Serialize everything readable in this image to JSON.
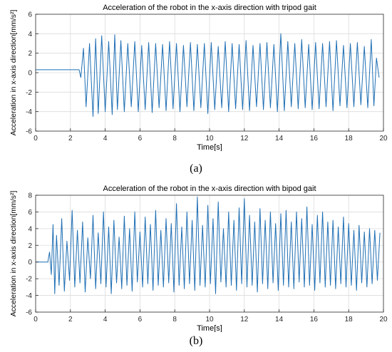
{
  "captions": [
    "(a)",
    "(b)"
  ],
  "colors": {
    "line": "#1f6fb4",
    "grid": "#dcdcdc",
    "axis": "#262626"
  },
  "chart_data": [
    {
      "type": "line",
      "title": "Acceleration of the robot in the x-axis direction with tripod gait",
      "xlabel": "Time[s]",
      "ylabel": "Acceleration in x-axis direction[mm/s²]",
      "xlim": [
        0,
        20
      ],
      "ylim": [
        -6,
        6
      ],
      "xticks": [
        0,
        2,
        4,
        6,
        8,
        10,
        12,
        14,
        16,
        18,
        20
      ],
      "yticks": [
        -6,
        -4,
        -2,
        0,
        2,
        4,
        6
      ],
      "grid": true,
      "series": [
        {
          "x": [
            0,
            2.5,
            2.6,
            2.75,
            2.9,
            3.1,
            3.3,
            3.45,
            3.6,
            3.8,
            4.0,
            4.2,
            4.4,
            4.55,
            4.7,
            4.9,
            5.1,
            5.3,
            5.5,
            5.7,
            5.9,
            6.1,
            6.3,
            6.5,
            6.7,
            6.9,
            7.1,
            7.3,
            7.5,
            7.7,
            7.9,
            8.1,
            8.3,
            8.5,
            8.7,
            8.9,
            9.1,
            9.3,
            9.5,
            9.7,
            9.9,
            10.1,
            10.3,
            10.5,
            10.7,
            10.9,
            11.1,
            11.3,
            11.5,
            11.7,
            11.9,
            12.1,
            12.3,
            12.5,
            12.7,
            12.9,
            13.1,
            13.3,
            13.5,
            13.7,
            13.9,
            14.1,
            14.3,
            14.5,
            14.7,
            14.9,
            15.1,
            15.3,
            15.5,
            15.7,
            15.9,
            16.1,
            16.3,
            16.5,
            16.7,
            16.9,
            17.1,
            17.3,
            17.5,
            17.7,
            17.9,
            18.1,
            18.3,
            18.5,
            18.7,
            18.9,
            19.1,
            19.3,
            19.45,
            19.6,
            19.75
          ],
          "y": [
            0.3,
            0.3,
            -0.5,
            2.5,
            -3.5,
            3.0,
            -4.5,
            3.5,
            -4.2,
            3.8,
            -4.0,
            3.2,
            -4.3,
            3.9,
            -3.8,
            3.3,
            -4.0,
            3.0,
            -3.5,
            3.2,
            -4.0,
            2.8,
            -3.8,
            3.1,
            -4.1,
            3.0,
            -3.6,
            2.9,
            -3.9,
            3.2,
            -3.7,
            3.0,
            -4.0,
            2.8,
            -3.5,
            3.1,
            -3.9,
            2.9,
            -3.6,
            3.0,
            -4.2,
            3.1,
            -3.8,
            2.7,
            -3.6,
            3.2,
            -4.0,
            3.0,
            -3.7,
            2.9,
            -3.8,
            3.3,
            -3.9,
            2.8,
            -3.5,
            3.0,
            -3.8,
            3.1,
            -3.6,
            2.9,
            -4.0,
            4.0,
            -3.9,
            3.2,
            -3.5,
            3.0,
            -3.7,
            3.4,
            -3.6,
            2.9,
            -3.8,
            3.1,
            -3.7,
            3.0,
            -3.5,
            3.2,
            -3.9,
            3.3,
            -3.4,
            2.8,
            -3.6,
            3.0,
            -3.5,
            3.1,
            -3.3,
            2.7,
            -3.6,
            3.4,
            -3.4,
            1.5,
            -0.5
          ]
        }
      ]
    },
    {
      "type": "line",
      "title": "Acceleration of the robot in the x-axis direction with bipod gait",
      "xlabel": "Time[s]",
      "ylabel": "Acceleration in x-axis direction[mm/s²]",
      "xlim": [
        0,
        20
      ],
      "ylim": [
        -6,
        8
      ],
      "xticks": [
        0,
        2,
        4,
        6,
        8,
        10,
        12,
        14,
        16,
        18,
        20
      ],
      "yticks": [
        -6,
        -4,
        -2,
        0,
        2,
        4,
        6,
        8
      ],
      "grid": true,
      "series": [
        {
          "x": [
            0,
            0.7,
            0.8,
            0.9,
            1.0,
            1.1,
            1.2,
            1.35,
            1.5,
            1.65,
            1.8,
            1.95,
            2.1,
            2.25,
            2.4,
            2.55,
            2.7,
            2.85,
            3.0,
            3.15,
            3.3,
            3.45,
            3.6,
            3.75,
            3.9,
            4.05,
            4.2,
            4.35,
            4.5,
            4.65,
            4.8,
            4.95,
            5.1,
            5.25,
            5.4,
            5.55,
            5.7,
            5.85,
            6.0,
            6.15,
            6.3,
            6.45,
            6.6,
            6.75,
            6.9,
            7.05,
            7.2,
            7.35,
            7.5,
            7.65,
            7.8,
            7.95,
            8.1,
            8.25,
            8.4,
            8.55,
            8.7,
            8.85,
            9.0,
            9.15,
            9.3,
            9.45,
            9.6,
            9.75,
            9.9,
            10.05,
            10.2,
            10.35,
            10.5,
            10.65,
            10.8,
            10.95,
            11.1,
            11.25,
            11.4,
            11.55,
            11.7,
            11.85,
            12.0,
            12.15,
            12.3,
            12.45,
            12.6,
            12.75,
            12.9,
            13.05,
            13.2,
            13.35,
            13.5,
            13.65,
            13.8,
            13.95,
            14.1,
            14.25,
            14.4,
            14.55,
            14.7,
            14.85,
            15.0,
            15.15,
            15.3,
            15.45,
            15.6,
            15.75,
            15.9,
            16.05,
            16.2,
            16.35,
            16.5,
            16.65,
            16.8,
            16.95,
            17.1,
            17.25,
            17.4,
            17.55,
            17.7,
            17.85,
            18.0,
            18.15,
            18.3,
            18.45,
            18.6,
            18.75,
            18.9,
            19.05,
            19.2,
            19.35,
            19.5,
            19.65,
            19.8
          ],
          "y": [
            0,
            0,
            1.2,
            -1.5,
            4.5,
            -3.8,
            3.2,
            -2.8,
            5.2,
            -3.5,
            2.5,
            -2.2,
            6.2,
            -3.0,
            3.8,
            -2.5,
            4.8,
            -3.6,
            2.9,
            -2.0,
            5.6,
            -3.2,
            3.5,
            -2.6,
            6.0,
            -3.0,
            4.2,
            -3.8,
            5.0,
            -2.5,
            3.0,
            -3.2,
            5.5,
            -2.8,
            4.0,
            -3.5,
            6.0,
            -2.4,
            3.6,
            -3.0,
            5.4,
            -2.6,
            4.5,
            -3.4,
            6.2,
            -2.8,
            3.8,
            -3.0,
            5.2,
            -2.5,
            4.6,
            -3.6,
            7.0,
            -2.8,
            4.2,
            -3.2,
            6.0,
            -2.6,
            5.0,
            -3.4,
            7.8,
            -2.8,
            4.4,
            -3.0,
            6.8,
            -2.6,
            5.2,
            -3.8,
            7.2,
            -2.4,
            4.0,
            -3.0,
            6.0,
            -2.8,
            5.0,
            -3.4,
            6.5,
            -2.6,
            7.6,
            -3.0,
            5.6,
            -2.8,
            4.8,
            -3.6,
            6.4,
            -2.6,
            5.0,
            -3.2,
            6.0,
            -2.5,
            4.6,
            -3.4,
            5.8,
            -2.8,
            6.2,
            -3.0,
            4.8,
            -3.2,
            6.0,
            -2.4,
            5.2,
            -3.0,
            6.6,
            -2.8,
            4.5,
            -3.4,
            5.6,
            -2.5,
            6.0,
            -3.0,
            4.8,
            -2.8,
            5.0,
            -3.2,
            4.2,
            -2.6,
            5.4,
            -3.0,
            4.6,
            -2.8,
            3.8,
            -3.4,
            4.4,
            -2.5,
            3.6,
            -3.0,
            4.0,
            -2.6,
            3.8,
            -2.2,
            3.5
          ]
        }
      ]
    }
  ]
}
